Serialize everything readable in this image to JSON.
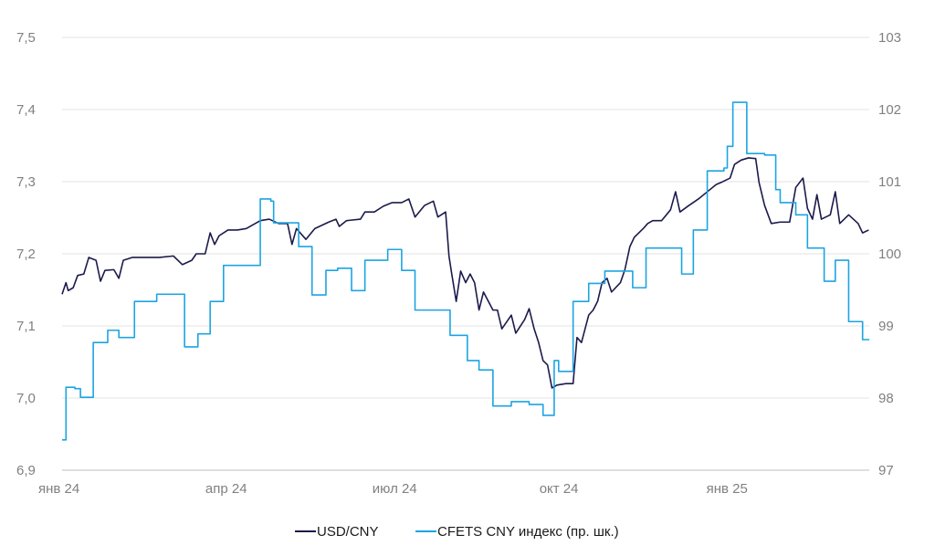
{
  "chart_data": {
    "type": "line",
    "title": "",
    "x_unit": "months since Jan 2024",
    "x_ticks": [
      {
        "x": 0,
        "label": "янв 24"
      },
      {
        "x": 3,
        "label": "апр 24"
      },
      {
        "x": 6,
        "label": "июл 24"
      },
      {
        "x": 9,
        "label": "окт 24"
      },
      {
        "x": 12,
        "label": "янв 25"
      }
    ],
    "xlim": [
      0,
      14.5
    ],
    "y_left": {
      "ylim": [
        6.9,
        7.5
      ],
      "ticks": [
        "6,9",
        "7,0",
        "7,1",
        "7,2",
        "7,3",
        "7,4",
        "7,5"
      ],
      "values": [
        6.9,
        7.0,
        7.1,
        7.2,
        7.3,
        7.4,
        7.5
      ]
    },
    "y_right": {
      "ylim": [
        97,
        103
      ],
      "ticks": [
        "97",
        "98",
        "99",
        "100",
        "101",
        "102",
        "103"
      ],
      "values": [
        97,
        98,
        99,
        100,
        101,
        102,
        103
      ]
    },
    "grid": true,
    "legend_position": "bottom-center",
    "series": [
      {
        "name": "USD/CNY",
        "axis": "left",
        "color": "#1b1a4b",
        "style": "line",
        "points": [
          [
            0,
            7.144
          ],
          [
            0.07,
            7.16
          ],
          [
            0.11,
            7.149
          ],
          [
            0.2,
            7.153
          ],
          [
            0.28,
            7.17
          ],
          [
            0.39,
            7.172
          ],
          [
            0.48,
            7.195
          ],
          [
            0.61,
            7.191
          ],
          [
            0.69,
            7.162
          ],
          [
            0.77,
            7.177
          ],
          [
            0.93,
            7.178
          ],
          [
            1.02,
            7.166
          ],
          [
            1.1,
            7.191
          ],
          [
            1.26,
            7.195
          ],
          [
            1.51,
            7.195
          ],
          [
            1.75,
            7.195
          ],
          [
            2.0,
            7.197
          ],
          [
            2.16,
            7.185
          ],
          [
            2.33,
            7.191
          ],
          [
            2.41,
            7.2
          ],
          [
            2.57,
            7.2
          ],
          [
            2.66,
            7.229
          ],
          [
            2.74,
            7.213
          ],
          [
            2.82,
            7.225
          ],
          [
            2.98,
            7.233
          ],
          [
            3.15,
            7.233
          ],
          [
            3.31,
            7.235
          ],
          [
            3.56,
            7.246
          ],
          [
            3.72,
            7.248
          ],
          [
            3.89,
            7.242
          ],
          [
            4.05,
            7.242
          ],
          [
            4.13,
            7.213
          ],
          [
            4.21,
            7.235
          ],
          [
            4.38,
            7.22
          ],
          [
            4.54,
            7.235
          ],
          [
            4.79,
            7.244
          ],
          [
            4.92,
            7.248
          ],
          [
            4.98,
            7.238
          ],
          [
            5.11,
            7.246
          ],
          [
            5.36,
            7.248
          ],
          [
            5.44,
            7.258
          ],
          [
            5.61,
            7.258
          ],
          [
            5.77,
            7.266
          ],
          [
            5.93,
            7.271
          ],
          [
            6.1,
            7.271
          ],
          [
            6.23,
            7.276
          ],
          [
            6.34,
            7.251
          ],
          [
            6.51,
            7.267
          ],
          [
            6.67,
            7.273
          ],
          [
            6.75,
            7.251
          ],
          [
            6.89,
            7.258
          ],
          [
            6.95,
            7.197
          ],
          [
            7.0,
            7.172
          ],
          [
            7.08,
            7.134
          ],
          [
            7.16,
            7.176
          ],
          [
            7.25,
            7.16
          ],
          [
            7.33,
            7.172
          ],
          [
            7.41,
            7.16
          ],
          [
            7.49,
            7.122
          ],
          [
            7.57,
            7.147
          ],
          [
            7.74,
            7.122
          ],
          [
            7.82,
            7.122
          ],
          [
            7.9,
            7.096
          ],
          [
            8.07,
            7.115
          ],
          [
            8.15,
            7.09
          ],
          [
            8.31,
            7.109
          ],
          [
            8.39,
            7.124
          ],
          [
            8.48,
            7.096
          ],
          [
            8.56,
            7.077
          ],
          [
            8.64,
            7.052
          ],
          [
            8.72,
            7.046
          ],
          [
            8.8,
            7.014
          ],
          [
            8.89,
            7.018
          ],
          [
            9.05,
            7.02
          ],
          [
            9.18,
            7.02
          ],
          [
            9.25,
            7.084
          ],
          [
            9.33,
            7.077
          ],
          [
            9.46,
            7.115
          ],
          [
            9.54,
            7.122
          ],
          [
            9.62,
            7.134
          ],
          [
            9.7,
            7.16
          ],
          [
            9.79,
            7.166
          ],
          [
            9.87,
            7.147
          ],
          [
            10.03,
            7.16
          ],
          [
            10.11,
            7.178
          ],
          [
            10.2,
            7.21
          ],
          [
            10.28,
            7.223
          ],
          [
            10.44,
            7.235
          ],
          [
            10.52,
            7.242
          ],
          [
            10.61,
            7.246
          ],
          [
            10.77,
            7.246
          ],
          [
            10.93,
            7.261
          ],
          [
            11.02,
            7.286
          ],
          [
            11.1,
            7.258
          ],
          [
            11.26,
            7.267
          ],
          [
            11.43,
            7.276
          ],
          [
            11.59,
            7.286
          ],
          [
            11.75,
            7.296
          ],
          [
            11.84,
            7.299
          ],
          [
            12.0,
            7.305
          ],
          [
            12.08,
            7.324
          ],
          [
            12.2,
            7.33
          ],
          [
            12.33,
            7.333
          ],
          [
            12.46,
            7.332
          ],
          [
            12.52,
            7.299
          ],
          [
            12.62,
            7.267
          ],
          [
            12.74,
            7.242
          ],
          [
            12.9,
            7.244
          ],
          [
            13.07,
            7.244
          ],
          [
            13.18,
            7.292
          ],
          [
            13.31,
            7.305
          ],
          [
            13.39,
            7.263
          ],
          [
            13.48,
            7.248
          ],
          [
            13.56,
            7.282
          ],
          [
            13.64,
            7.248
          ],
          [
            13.8,
            7.254
          ],
          [
            13.89,
            7.286
          ],
          [
            13.97,
            7.242
          ],
          [
            14.13,
            7.254
          ],
          [
            14.3,
            7.242
          ],
          [
            14.38,
            7.229
          ],
          [
            14.49,
            7.233
          ]
        ]
      },
      {
        "name": "CFETS CNY индекс (пр. шк.)",
        "axis": "right",
        "color": "#1ca4e2",
        "style": "step",
        "points": [
          [
            0,
            97.42
          ],
          [
            0.07,
            98.15
          ],
          [
            0.23,
            98.13
          ],
          [
            0.33,
            98.01
          ],
          [
            0.56,
            98.77
          ],
          [
            0.82,
            98.94
          ],
          [
            1.02,
            98.84
          ],
          [
            1.3,
            99.34
          ],
          [
            1.7,
            99.44
          ],
          [
            2.2,
            98.71
          ],
          [
            2.44,
            98.89
          ],
          [
            2.66,
            99.34
          ],
          [
            2.9,
            99.84
          ],
          [
            3.56,
            100.76
          ],
          [
            3.75,
            100.73
          ],
          [
            3.8,
            100.43
          ],
          [
            4.25,
            100.1
          ],
          [
            4.49,
            99.43
          ],
          [
            4.74,
            99.77
          ],
          [
            4.95,
            99.8
          ],
          [
            5.2,
            99.49
          ],
          [
            5.44,
            99.91
          ],
          [
            5.85,
            100.06
          ],
          [
            6.1,
            99.77
          ],
          [
            6.34,
            99.22
          ],
          [
            6.97,
            98.87
          ],
          [
            7.28,
            98.52
          ],
          [
            7.49,
            98.39
          ],
          [
            7.74,
            97.89
          ],
          [
            8.07,
            97.95
          ],
          [
            8.39,
            97.91
          ],
          [
            8.64,
            97.76
          ],
          [
            8.84,
            98.52
          ],
          [
            8.92,
            98.37
          ],
          [
            9.18,
            99.34
          ],
          [
            9.46,
            99.59
          ],
          [
            9.75,
            99.76
          ],
          [
            10.25,
            99.53
          ],
          [
            10.49,
            100.08
          ],
          [
            11.13,
            99.72
          ],
          [
            11.34,
            100.33
          ],
          [
            11.59,
            101.15
          ],
          [
            11.89,
            101.19
          ],
          [
            11.95,
            101.49
          ],
          [
            12.05,
            102.1
          ],
          [
            12.3,
            101.39
          ],
          [
            12.62,
            101.37
          ],
          [
            12.82,
            100.89
          ],
          [
            12.9,
            100.71
          ],
          [
            13.18,
            100.54
          ],
          [
            13.39,
            100.08
          ],
          [
            13.69,
            99.62
          ],
          [
            13.89,
            99.91
          ],
          [
            14.13,
            99.06
          ],
          [
            14.38,
            98.81
          ],
          [
            14.49,
            98.82
          ]
        ]
      }
    ]
  }
}
